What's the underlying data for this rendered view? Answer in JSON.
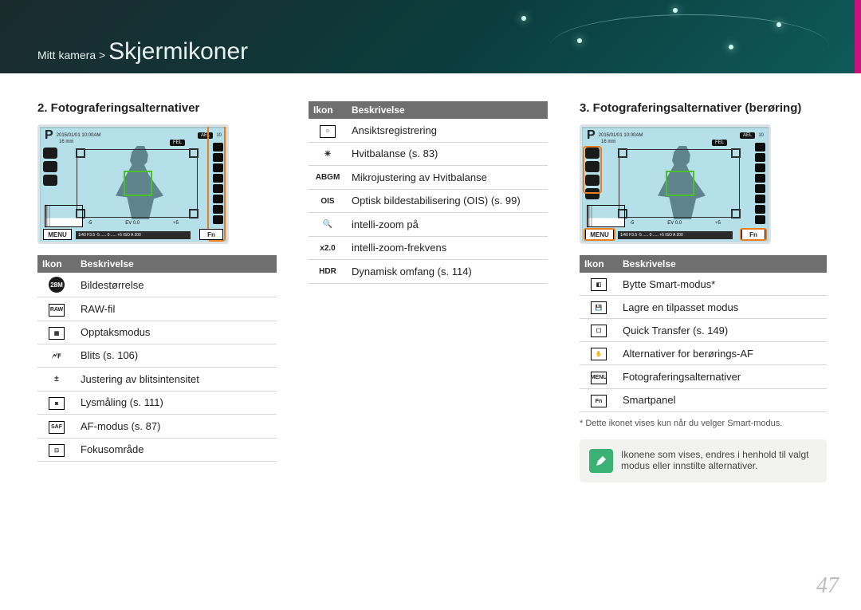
{
  "header": {
    "breadcrumb_prefix": "Mitt kamera > ",
    "page_title": "Skjermikoner"
  },
  "page_number": "47",
  "lcd": {
    "P": "P",
    "date": "2015/01/01 10:00AM",
    "lens": "16 mm",
    "ael": "AEL",
    "fel": "FEL",
    "ten": "10",
    "bat": "■",
    "menu": "MENU",
    "fn": "Fn",
    "bottom": "1/40 F3.5    -5 ..... 0 ..... +5   ISO A 200",
    "ev_l": "-5",
    "ev_c": "0",
    "ev_r": "+5",
    "ev_label": "EV  0.0"
  },
  "section2": {
    "title": "2. Fotograferingsalternativer",
    "th_icon": "Ikon",
    "th_desc": "Beskrivelse",
    "rows": [
      {
        "icon": "28M",
        "cls": "ic-circ",
        "desc": "Bildestørrelse"
      },
      {
        "icon": "RAW",
        "cls": "ic-sq",
        "desc": "RAW-fil"
      },
      {
        "icon": "▦",
        "cls": "ic-sq",
        "desc": "Opptaksmodus"
      },
      {
        "icon": "🗲ꜰ",
        "cls": "",
        "desc": "Blits (s. 106)"
      },
      {
        "icon": "±",
        "cls": "",
        "desc": "Justering av blitsintensitet"
      },
      {
        "icon": "◙",
        "cls": "ic-sq",
        "desc": "Lysmåling (s. 111)"
      },
      {
        "icon": "SAF",
        "cls": "ic-sq",
        "desc": "AF-modus (s. 87)"
      },
      {
        "icon": "⊡",
        "cls": "ic-sq",
        "desc": "Fokusområde"
      }
    ]
  },
  "sectionMid": {
    "th_icon": "Ikon",
    "th_desc": "Beskrivelse",
    "rows": [
      {
        "icon": "☺",
        "cls": "ic-sq",
        "desc": "Ansiktsregistrering"
      },
      {
        "icon": "☀",
        "cls": "",
        "desc": "Hvitbalanse (s. 83)"
      },
      {
        "icon": "ABGM",
        "cls": "",
        "desc": "Mikrojustering av Hvitbalanse"
      },
      {
        "icon": "OIS",
        "cls": "",
        "desc": "Optisk bildestabilisering (OIS) (s. 99)"
      },
      {
        "icon": "🔍",
        "cls": "",
        "desc": "intelli-zoom på"
      },
      {
        "icon": "x2.0",
        "cls": "",
        "desc": "intelli-zoom-frekvens"
      },
      {
        "icon": "HDR",
        "cls": "",
        "desc": "Dynamisk omfang (s. 114)"
      }
    ]
  },
  "section3": {
    "title": "3. Fotograferingsalternativer (berøring)",
    "th_icon": "Ikon",
    "th_desc": "Beskrivelse",
    "rows": [
      {
        "icon": "◧",
        "cls": "ic-sq",
        "desc": "Bytte Smart-modus*"
      },
      {
        "icon": "💾",
        "cls": "ic-sq",
        "desc": "Lagre en tilpasset modus"
      },
      {
        "icon": "☐",
        "cls": "ic-sq",
        "desc": "Quick Transfer (s. 149)"
      },
      {
        "icon": "✋",
        "cls": "ic-sq",
        "desc": "Alternativer for berørings-AF"
      },
      {
        "icon": "MENU",
        "cls": "ic-sq",
        "desc": "Fotograferingsalternativer"
      },
      {
        "icon": "Fn",
        "cls": "ic-sq",
        "desc": "Smartpanel"
      }
    ],
    "note": "* Dette ikonet vises kun når du velger Smart-modus.",
    "box": "Ikonene som vises, endres i henhold til valgt modus eller innstilte alternativer."
  }
}
